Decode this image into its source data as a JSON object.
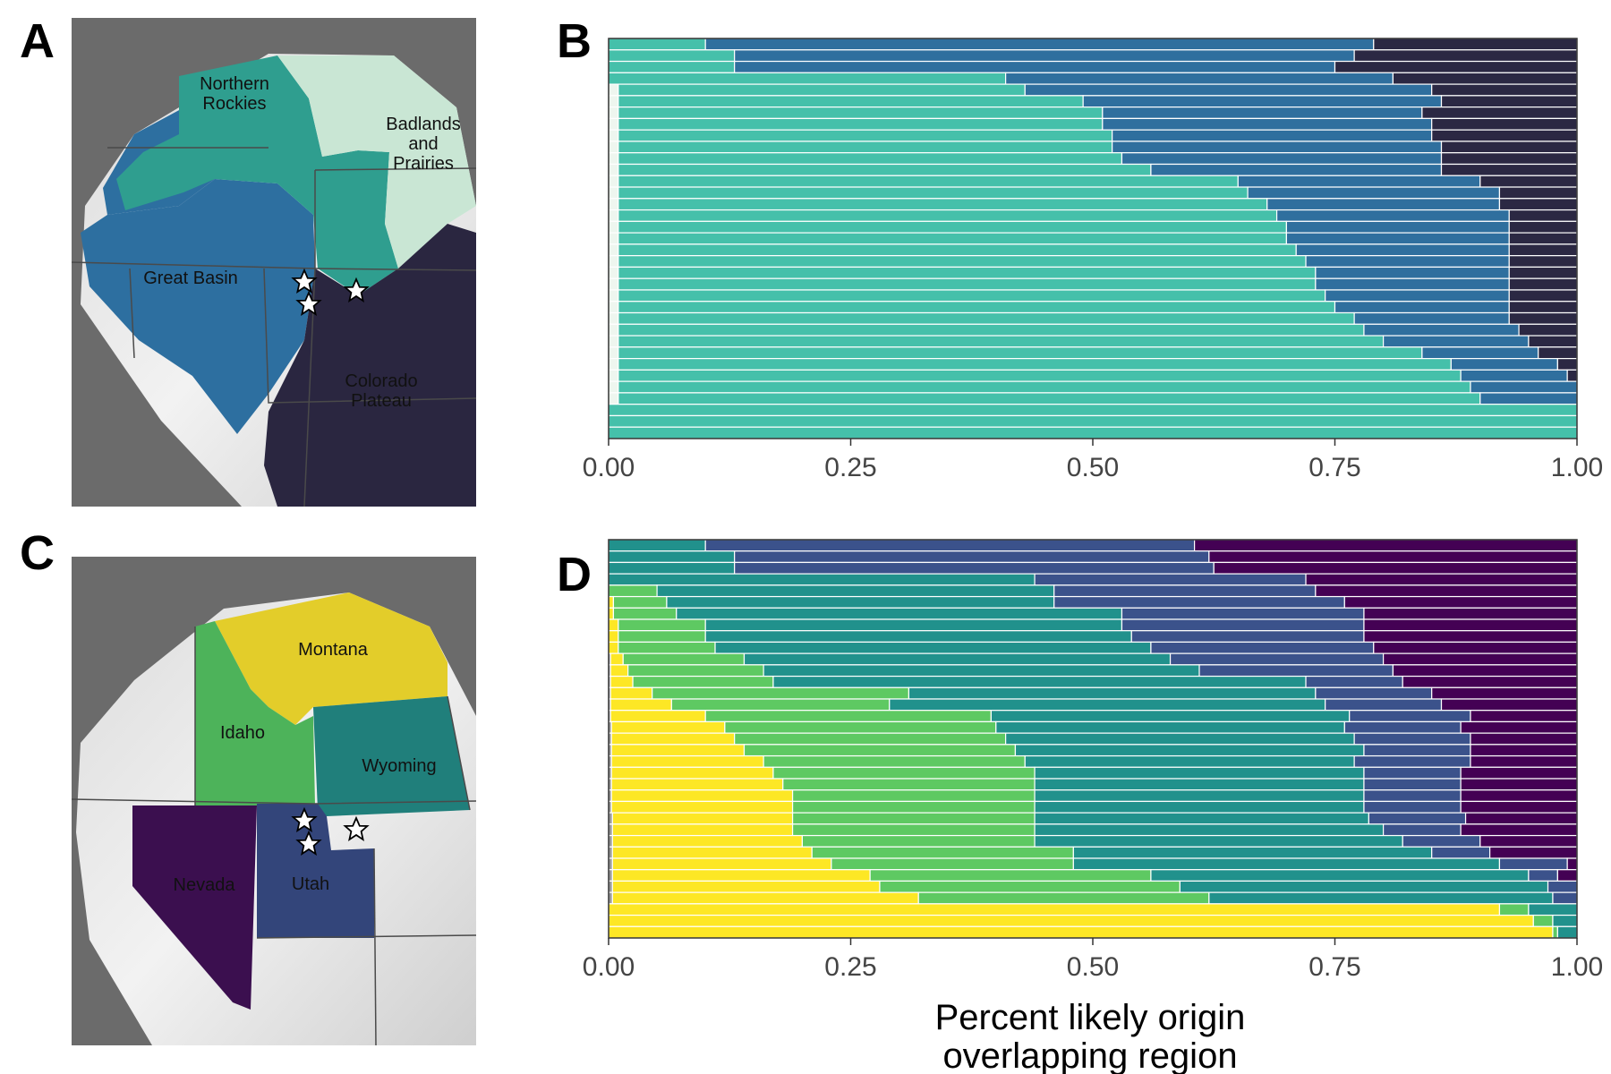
{
  "panels": {
    "a": "A",
    "b": "B",
    "c": "C",
    "d": "D"
  },
  "map_a": {
    "regions": [
      {
        "label": [
          "Northern",
          "Rockies"
        ],
        "color": "#2f9e8f"
      },
      {
        "label": [
          "Badlands",
          "and",
          "Prairies"
        ],
        "color": "#c9e6d4"
      },
      {
        "label": [
          "Great Basin"
        ],
        "color": "#2d6fa0"
      },
      {
        "label": [
          "Colorado",
          "Plateau"
        ],
        "color": "#2a2640"
      }
    ],
    "sites": 3
  },
  "map_c": {
    "regions": [
      {
        "label": [
          "Montana"
        ],
        "color": "#e3cd2a"
      },
      {
        "label": [
          "Idaho"
        ],
        "color": "#4db35a"
      },
      {
        "label": [
          "Wyoming"
        ],
        "color": "#207f7b"
      },
      {
        "label": [
          "Nevada"
        ],
        "color": "#3b0f4f"
      },
      {
        "label": [
          "Utah"
        ],
        "color": "#33457a"
      }
    ],
    "sites": 3
  },
  "chart_data": [
    {
      "panel": "B",
      "type": "bar",
      "orientation": "horizontal",
      "stacked": true,
      "xlim": [
        0,
        1
      ],
      "xticks": [
        "0.00",
        "0.25",
        "0.50",
        "0.75",
        "1.00"
      ],
      "series_colors": [
        "#eef6ef",
        "#45c0aa",
        "#2f6f9e",
        "#2b2843"
      ],
      "rows": [
        [
          0.0,
          0.1,
          0.69,
          0.21
        ],
        [
          0.0,
          0.13,
          0.64,
          0.23
        ],
        [
          0.0,
          0.13,
          0.62,
          0.25
        ],
        [
          0.0,
          0.41,
          0.4,
          0.19
        ],
        [
          0.01,
          0.42,
          0.42,
          0.15
        ],
        [
          0.01,
          0.48,
          0.37,
          0.14
        ],
        [
          0.01,
          0.5,
          0.33,
          0.16
        ],
        [
          0.01,
          0.5,
          0.34,
          0.15
        ],
        [
          0.01,
          0.51,
          0.33,
          0.15
        ],
        [
          0.01,
          0.51,
          0.34,
          0.14
        ],
        [
          0.01,
          0.52,
          0.33,
          0.14
        ],
        [
          0.01,
          0.55,
          0.3,
          0.14
        ],
        [
          0.01,
          0.64,
          0.25,
          0.1
        ],
        [
          0.01,
          0.65,
          0.26,
          0.08
        ],
        [
          0.01,
          0.67,
          0.24,
          0.08
        ],
        [
          0.01,
          0.68,
          0.24,
          0.07
        ],
        [
          0.01,
          0.69,
          0.23,
          0.07
        ],
        [
          0.01,
          0.69,
          0.23,
          0.07
        ],
        [
          0.01,
          0.7,
          0.22,
          0.07
        ],
        [
          0.01,
          0.71,
          0.21,
          0.07
        ],
        [
          0.01,
          0.72,
          0.2,
          0.07
        ],
        [
          0.01,
          0.72,
          0.2,
          0.07
        ],
        [
          0.01,
          0.73,
          0.19,
          0.07
        ],
        [
          0.01,
          0.74,
          0.18,
          0.07
        ],
        [
          0.01,
          0.76,
          0.16,
          0.07
        ],
        [
          0.01,
          0.77,
          0.16,
          0.06
        ],
        [
          0.01,
          0.79,
          0.15,
          0.05
        ],
        [
          0.01,
          0.83,
          0.12,
          0.04
        ],
        [
          0.01,
          0.86,
          0.11,
          0.02
        ],
        [
          0.01,
          0.87,
          0.11,
          0.01
        ],
        [
          0.01,
          0.88,
          0.11,
          0.0
        ],
        [
          0.01,
          0.89,
          0.1,
          0.0
        ],
        [
          0.0,
          1.0,
          0.0,
          0.0
        ],
        [
          0.0,
          1.0,
          0.0,
          0.0
        ],
        [
          0.0,
          1.0,
          0.0,
          0.0
        ]
      ]
    },
    {
      "panel": "D",
      "type": "bar",
      "orientation": "horizontal",
      "stacked": true,
      "xlim": [
        0,
        1
      ],
      "xticks": [
        "0.00",
        "0.25",
        "0.50",
        "0.75",
        "1.00"
      ],
      "xlabel": [
        "Percent likely origin",
        "overlapping region"
      ],
      "series_colors": [
        "#9a9a9a",
        "#fde725",
        "#5ec962",
        "#21918c",
        "#3b528b",
        "#440154"
      ],
      "rows": [
        [
          0.0,
          0.0,
          0.0,
          0.1,
          0.505,
          0.395
        ],
        [
          0.0,
          0.0,
          0.0,
          0.13,
          0.49,
          0.38
        ],
        [
          0.0,
          0.0,
          0.0,
          0.13,
          0.495,
          0.375
        ],
        [
          0.0,
          0.0,
          0.0,
          0.44,
          0.28,
          0.28
        ],
        [
          0.0,
          0.0,
          0.05,
          0.41,
          0.27,
          0.27
        ],
        [
          0.0,
          0.005,
          0.055,
          0.4,
          0.3,
          0.24
        ],
        [
          0.0,
          0.005,
          0.065,
          0.46,
          0.25,
          0.22
        ],
        [
          0.0,
          0.01,
          0.09,
          0.43,
          0.25,
          0.22
        ],
        [
          0.0,
          0.01,
          0.09,
          0.44,
          0.24,
          0.22
        ],
        [
          0.0,
          0.01,
          0.1,
          0.45,
          0.23,
          0.21
        ],
        [
          0.002,
          0.013,
          0.125,
          0.44,
          0.22,
          0.2
        ],
        [
          0.002,
          0.018,
          0.14,
          0.45,
          0.2,
          0.19
        ],
        [
          0.002,
          0.023,
          0.145,
          0.55,
          0.1,
          0.18
        ],
        [
          0.002,
          0.043,
          0.265,
          0.42,
          0.12,
          0.15
        ],
        [
          0.002,
          0.063,
          0.225,
          0.45,
          0.12,
          0.14
        ],
        [
          0.002,
          0.098,
          0.295,
          0.37,
          0.125,
          0.11
        ],
        [
          0.003,
          0.117,
          0.28,
          0.36,
          0.12,
          0.12
        ],
        [
          0.003,
          0.127,
          0.28,
          0.36,
          0.12,
          0.11
        ],
        [
          0.003,
          0.137,
          0.28,
          0.36,
          0.11,
          0.11
        ],
        [
          0.003,
          0.157,
          0.27,
          0.34,
          0.12,
          0.11
        ],
        [
          0.003,
          0.167,
          0.27,
          0.34,
          0.1,
          0.12
        ],
        [
          0.003,
          0.177,
          0.26,
          0.34,
          0.1,
          0.12
        ],
        [
          0.003,
          0.187,
          0.25,
          0.34,
          0.1,
          0.12
        ],
        [
          0.003,
          0.187,
          0.25,
          0.34,
          0.1,
          0.12
        ],
        [
          0.004,
          0.186,
          0.25,
          0.345,
          0.1,
          0.115
        ],
        [
          0.004,
          0.186,
          0.25,
          0.36,
          0.08,
          0.12
        ],
        [
          0.004,
          0.196,
          0.24,
          0.38,
          0.08,
          0.1
        ],
        [
          0.004,
          0.206,
          0.27,
          0.37,
          0.06,
          0.09
        ],
        [
          0.004,
          0.226,
          0.25,
          0.44,
          0.07,
          0.01
        ],
        [
          0.004,
          0.266,
          0.29,
          0.39,
          0.03,
          0.02
        ],
        [
          0.004,
          0.276,
          0.31,
          0.38,
          0.03,
          0.0
        ],
        [
          0.004,
          0.316,
          0.3,
          0.355,
          0.025,
          0.0
        ],
        [
          0.0,
          0.92,
          0.03,
          0.05,
          0.0,
          0.0
        ],
        [
          0.0,
          0.955,
          0.02,
          0.025,
          0.0,
          0.0
        ],
        [
          0.0,
          0.975,
          0.005,
          0.02,
          0.0,
          0.0
        ]
      ]
    }
  ]
}
